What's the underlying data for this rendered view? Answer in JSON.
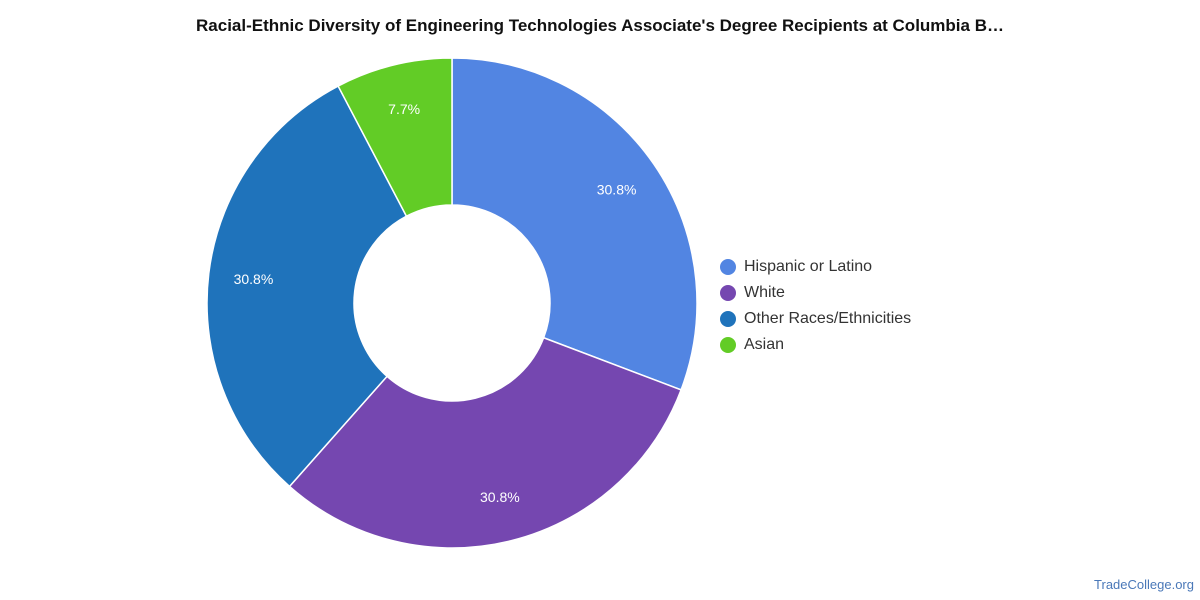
{
  "chart_data": {
    "type": "pie",
    "title": "Racial-Ethnic Diversity of Engineering Technologies Associate's Degree Recipients at Columbia B…",
    "categories": [
      "Hispanic or Latino",
      "White",
      "Other Races/Ethnicities",
      "Asian"
    ],
    "values": [
      30.8,
      30.8,
      30.8,
      7.7
    ],
    "value_labels": [
      "30.8%",
      "30.8%",
      "30.8%",
      "7.7%"
    ],
    "colors": [
      "#5285e2",
      "#7547b0",
      "#1f73bb",
      "#62cc26"
    ],
    "donut": true,
    "legend_position": "right"
  },
  "footer": {
    "source": "TradeCollege.org"
  }
}
